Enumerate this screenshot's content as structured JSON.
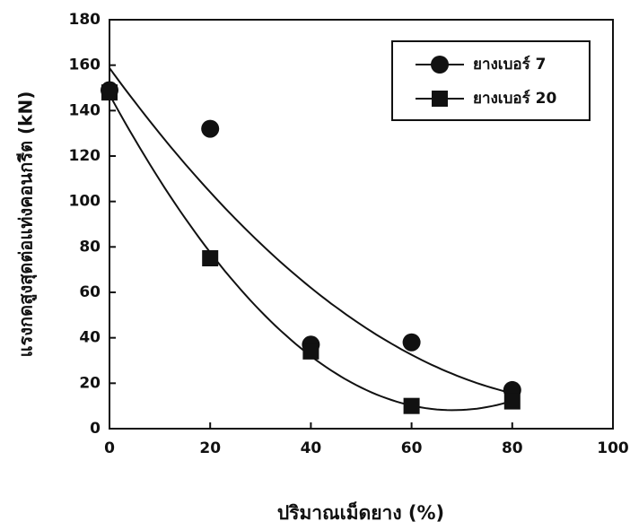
{
  "chart_data": {
    "type": "scatter",
    "x_label": "ปริมาณเม็ดยาง (%)",
    "y_label": "แรงกดสูงสุดต่อแท่งคอนกรีต (kN)",
    "x": [
      0,
      20,
      40,
      60,
      80
    ],
    "series": [
      {
        "name": "ยางเบอร์ 7",
        "marker": "circle",
        "color": "#111111",
        "trendline_order": 2,
        "values": [
          149,
          132,
          37,
          38,
          17
        ]
      },
      {
        "name": "ยางเบอร์ 20",
        "marker": "square",
        "color": "#111111",
        "trendline_order": 2,
        "values": [
          148,
          75,
          34,
          10,
          12
        ]
      }
    ],
    "xlim": [
      0,
      100
    ],
    "xticks": [
      0,
      20,
      40,
      60,
      80,
      100
    ],
    "ylim": [
      0,
      180
    ],
    "yticks": [
      0,
      20,
      40,
      60,
      80,
      100,
      120,
      140,
      160,
      180
    ],
    "legend": "top-right"
  }
}
